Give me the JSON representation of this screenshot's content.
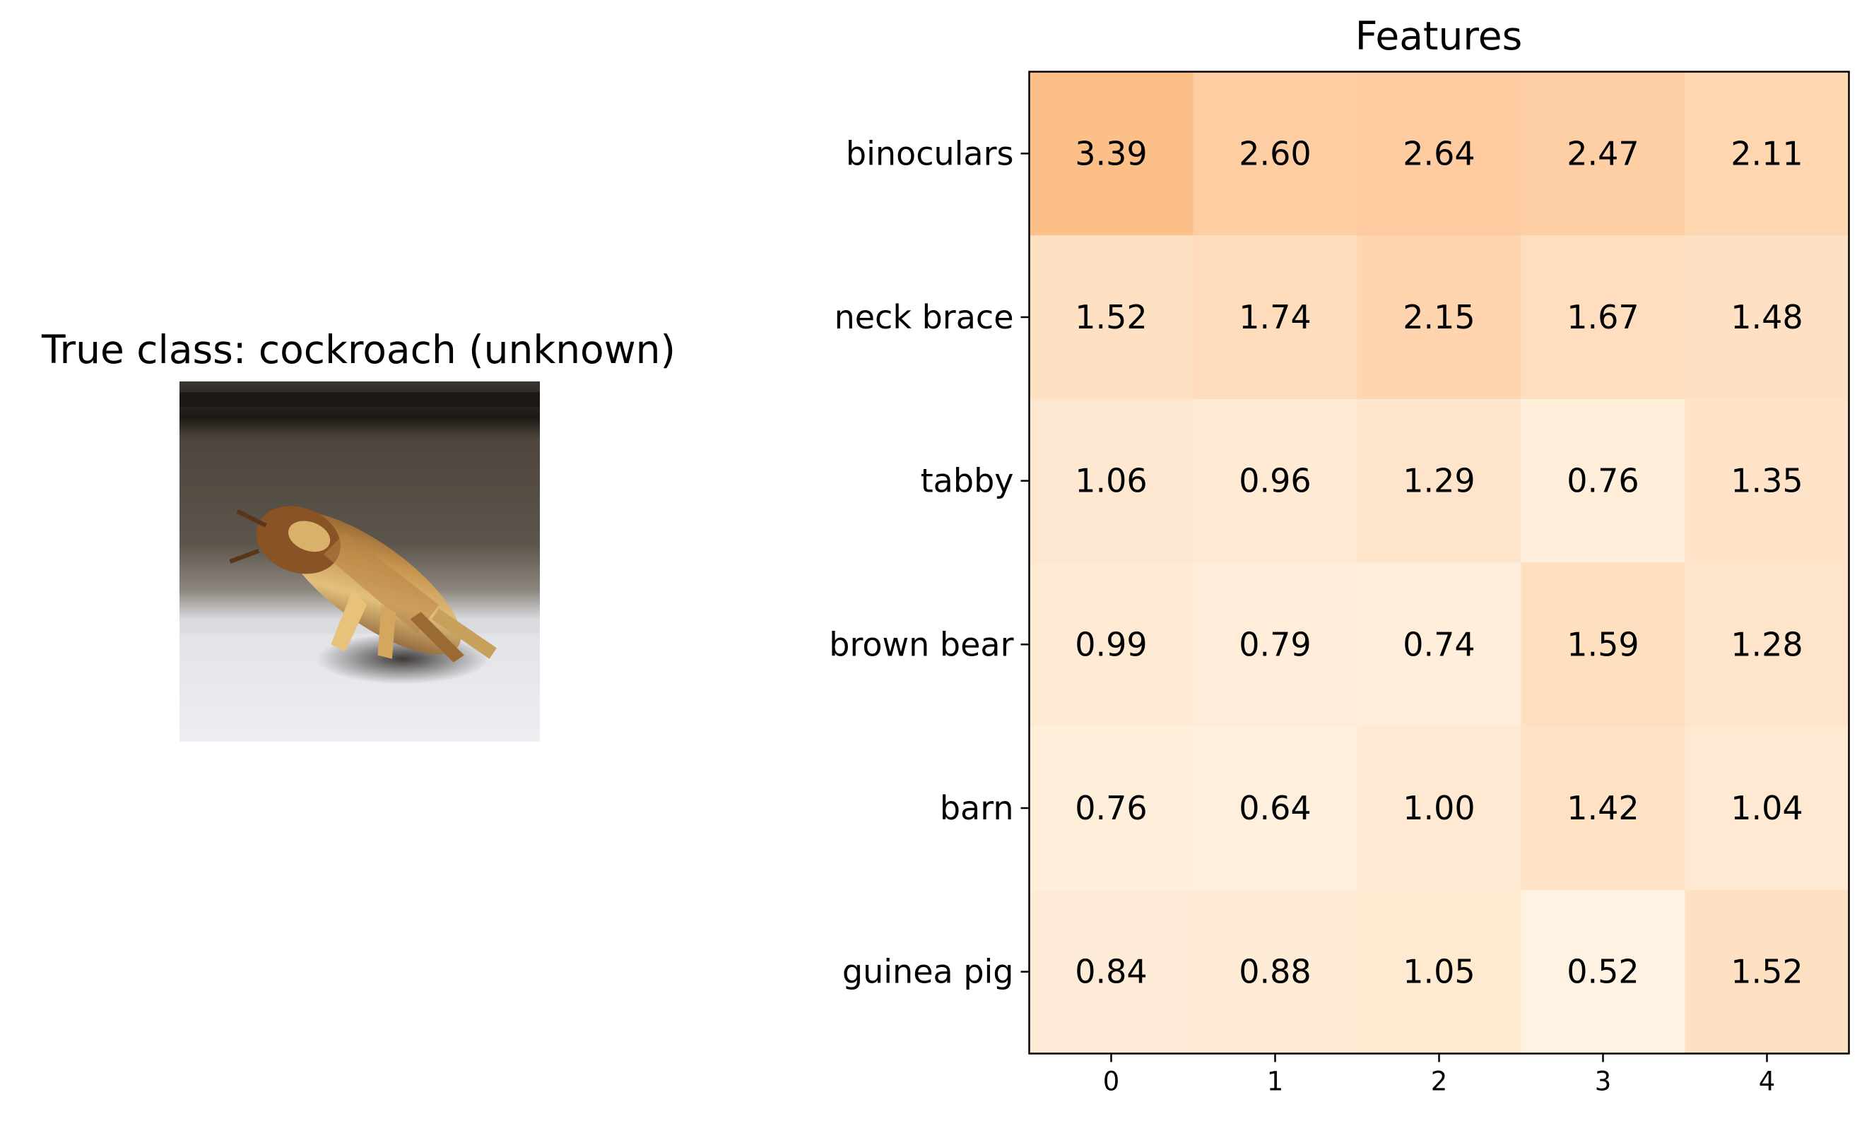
{
  "left_panel": {
    "title": "True class: cockroach (unknown)"
  },
  "chart_data": {
    "type": "heatmap",
    "title": "Features",
    "xlabel": "",
    "ylabel": "",
    "x_categories": [
      "0",
      "1",
      "2",
      "3",
      "4"
    ],
    "y_categories": [
      "binoculars",
      "neck brace",
      "tabby",
      "brown bear",
      "barn",
      "guinea pig"
    ],
    "values": [
      [
        3.39,
        2.6,
        2.64,
        2.47,
        2.11
      ],
      [
        1.52,
        1.74,
        2.15,
        1.67,
        1.48
      ],
      [
        1.06,
        0.96,
        1.29,
        0.76,
        1.35
      ],
      [
        0.99,
        0.79,
        0.74,
        1.59,
        1.28
      ],
      [
        0.76,
        0.64,
        1.0,
        1.42,
        1.04
      ],
      [
        0.84,
        0.88,
        1.05,
        0.52,
        1.52
      ]
    ],
    "value_labels": [
      [
        "3.39",
        "2.60",
        "2.64",
        "2.47",
        "2.11"
      ],
      [
        "1.52",
        "1.74",
        "2.15",
        "1.67",
        "1.48"
      ],
      [
        "1.06",
        "0.96",
        "1.29",
        "0.76",
        "1.35"
      ],
      [
        "0.99",
        "0.79",
        "0.74",
        "1.59",
        "1.28"
      ],
      [
        "0.76",
        "0.64",
        "1.00",
        "1.42",
        "1.04"
      ],
      [
        "0.84",
        "0.88",
        "1.05",
        "0.52",
        "1.52"
      ]
    ],
    "colormap": "light orange sequential",
    "color_low": "#fff2e2",
    "color_high": "#fdbf88",
    "grid": false,
    "legend": "none"
  }
}
